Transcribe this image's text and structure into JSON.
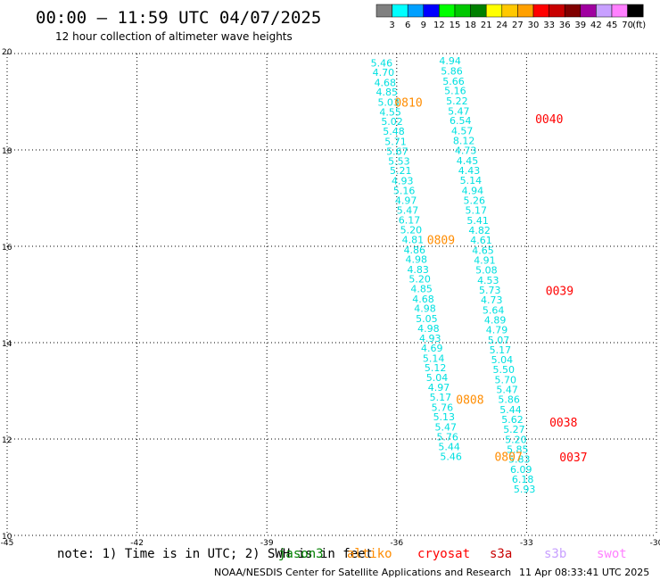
{
  "header": {
    "title": "00:00 – 11:59 UTC 04/07/2025",
    "subtitle": "12 hour collection of altimeter wave heights"
  },
  "colorbar": {
    "labels": [
      "3",
      "6",
      "9",
      "12",
      "15",
      "18",
      "21",
      "24",
      "27",
      "30",
      "33",
      "36",
      "39",
      "42",
      "45",
      "70"
    ],
    "unit": "(ft)",
    "colors": [
      "#808080",
      "#00ffff",
      "#00a0ff",
      "#0000ff",
      "#00ff00",
      "#00c800",
      "#008000",
      "#ffff00",
      "#ffc800",
      "#ffa000",
      "#ff0000",
      "#c80000",
      "#800000",
      "#a000a0",
      "#c8a0ff",
      "#ff80ff",
      "#000000"
    ]
  },
  "chart_data": {
    "type": "scatter",
    "xlim": [
      -45,
      -30
    ],
    "ylim": [
      10,
      20
    ],
    "x_ticks": [
      "-45",
      "-42",
      "-39",
      "-36",
      "-33",
      "-30"
    ],
    "x_tick_values": [
      -45,
      -42,
      -39,
      -36,
      -33,
      -30
    ],
    "y_ticks": [
      "10",
      "12",
      "14",
      "16",
      "18",
      "20"
    ],
    "y_tick_values": [
      10,
      12,
      14,
      16,
      18,
      20
    ],
    "grid": true,
    "legend_position": "bottom",
    "series": [
      {
        "label_color": "#00e0e0",
        "points": [
          {
            "x": -36.6,
            "y": 19.81,
            "label": "5.46"
          },
          {
            "x": -36.56,
            "y": 19.61,
            "label": "4.70"
          },
          {
            "x": -36.52,
            "y": 19.4,
            "label": "4.68"
          },
          {
            "x": -36.48,
            "y": 19.2,
            "label": "4.85"
          },
          {
            "x": -36.44,
            "y": 18.99,
            "label": "5.03"
          },
          {
            "x": -36.4,
            "y": 18.79,
            "label": "4.55"
          },
          {
            "x": -36.36,
            "y": 18.59,
            "label": "5.02"
          },
          {
            "x": -36.32,
            "y": 18.39,
            "label": "5.48"
          },
          {
            "x": -36.28,
            "y": 18.18,
            "label": "5.71"
          },
          {
            "x": -36.24,
            "y": 17.97,
            "label": "5.67"
          },
          {
            "x": -36.2,
            "y": 17.77,
            "label": "5.53"
          },
          {
            "x": -36.16,
            "y": 17.57,
            "label": "5.21"
          },
          {
            "x": -36.12,
            "y": 17.36,
            "label": "4.93"
          },
          {
            "x": -36.08,
            "y": 17.16,
            "label": "5.16"
          },
          {
            "x": -36.04,
            "y": 16.95,
            "label": "4.97"
          },
          {
            "x": -36.0,
            "y": 16.75,
            "label": "5.47"
          },
          {
            "x": -35.96,
            "y": 16.55,
            "label": "6.17"
          },
          {
            "x": -35.92,
            "y": 16.34,
            "label": "5.20"
          },
          {
            "x": -35.88,
            "y": 16.14,
            "label": "4.81"
          },
          {
            "x": -35.84,
            "y": 15.93,
            "label": "4.86"
          },
          {
            "x": -35.8,
            "y": 15.73,
            "label": "4.98"
          },
          {
            "x": -35.76,
            "y": 15.52,
            "label": "4.83"
          },
          {
            "x": -35.72,
            "y": 15.32,
            "label": "5.20"
          },
          {
            "x": -35.68,
            "y": 15.12,
            "label": "4.85"
          },
          {
            "x": -35.64,
            "y": 14.91,
            "label": "4.68"
          },
          {
            "x": -35.6,
            "y": 14.71,
            "label": "4.98"
          },
          {
            "x": -35.56,
            "y": 14.5,
            "label": "5.05"
          },
          {
            "x": -35.52,
            "y": 14.3,
            "label": "4.98"
          },
          {
            "x": -35.48,
            "y": 14.09,
            "label": "4.93"
          },
          {
            "x": -35.44,
            "y": 13.89,
            "label": "4.69"
          },
          {
            "x": -35.4,
            "y": 13.68,
            "label": "5.14"
          },
          {
            "x": -35.36,
            "y": 13.48,
            "label": "5.12"
          },
          {
            "x": -35.32,
            "y": 13.28,
            "label": "5.04"
          },
          {
            "x": -35.28,
            "y": 13.07,
            "label": "4.97"
          },
          {
            "x": -35.24,
            "y": 12.87,
            "label": "5.17"
          },
          {
            "x": -35.2,
            "y": 12.66,
            "label": "5.76"
          },
          {
            "x": -35.16,
            "y": 12.46,
            "label": "5.13"
          },
          {
            "x": -35.12,
            "y": 12.25,
            "label": "5.47"
          },
          {
            "x": -35.08,
            "y": 12.05,
            "label": "5.76"
          },
          {
            "x": -35.04,
            "y": 11.84,
            "label": "5.44"
          },
          {
            "x": -35.0,
            "y": 11.64,
            "label": "5.46"
          }
        ]
      },
      {
        "label_color": "#00e0e0",
        "points": [
          {
            "x": -35.02,
            "y": 19.85,
            "label": "4.94"
          },
          {
            "x": -34.98,
            "y": 19.64,
            "label": "5.86"
          },
          {
            "x": -34.94,
            "y": 19.43,
            "label": "5.66"
          },
          {
            "x": -34.9,
            "y": 19.23,
            "label": "5.16"
          },
          {
            "x": -34.86,
            "y": 19.02,
            "label": "5.22"
          },
          {
            "x": -34.82,
            "y": 18.81,
            "label": "5.47"
          },
          {
            "x": -34.78,
            "y": 18.61,
            "label": "6.54"
          },
          {
            "x": -34.74,
            "y": 18.4,
            "label": "4.57"
          },
          {
            "x": -34.7,
            "y": 18.19,
            "label": "8.12"
          },
          {
            "x": -34.66,
            "y": 17.99,
            "label": "4.73"
          },
          {
            "x": -34.62,
            "y": 17.78,
            "label": "4.45"
          },
          {
            "x": -34.58,
            "y": 17.57,
            "label": "4.43"
          },
          {
            "x": -34.54,
            "y": 17.37,
            "label": "5.14"
          },
          {
            "x": -34.5,
            "y": 17.16,
            "label": "4.94"
          },
          {
            "x": -34.46,
            "y": 16.95,
            "label": "5.26"
          },
          {
            "x": -34.42,
            "y": 16.75,
            "label": "5.17"
          },
          {
            "x": -34.38,
            "y": 16.54,
            "label": "5.41"
          },
          {
            "x": -34.34,
            "y": 16.33,
            "label": "4.82"
          },
          {
            "x": -34.3,
            "y": 16.13,
            "label": "4.61"
          },
          {
            "x": -34.26,
            "y": 15.92,
            "label": "4.65"
          },
          {
            "x": -34.22,
            "y": 15.71,
            "label": "4.91"
          },
          {
            "x": -34.18,
            "y": 15.51,
            "label": "5.08"
          },
          {
            "x": -34.14,
            "y": 15.3,
            "label": "4.53"
          },
          {
            "x": -34.1,
            "y": 15.09,
            "label": "5.73"
          },
          {
            "x": -34.06,
            "y": 14.89,
            "label": "4.73"
          },
          {
            "x": -34.02,
            "y": 14.68,
            "label": "5.64"
          },
          {
            "x": -33.98,
            "y": 14.47,
            "label": "4.89"
          },
          {
            "x": -33.94,
            "y": 14.27,
            "label": "4.79"
          },
          {
            "x": -33.9,
            "y": 14.06,
            "label": "5.07"
          },
          {
            "x": -33.86,
            "y": 13.85,
            "label": "5.17"
          },
          {
            "x": -33.82,
            "y": 13.65,
            "label": "5.04"
          },
          {
            "x": -33.78,
            "y": 13.44,
            "label": "5.50"
          },
          {
            "x": -33.74,
            "y": 13.23,
            "label": "5.70"
          },
          {
            "x": -33.7,
            "y": 13.03,
            "label": "5.47"
          },
          {
            "x": -33.66,
            "y": 12.82,
            "label": "5.86"
          },
          {
            "x": -33.62,
            "y": 12.61,
            "label": "5.44"
          },
          {
            "x": -33.58,
            "y": 12.41,
            "label": "5.62"
          },
          {
            "x": -33.54,
            "y": 12.2,
            "label": "5.27"
          },
          {
            "x": -33.5,
            "y": 11.99,
            "label": "5.20"
          },
          {
            "x": -33.46,
            "y": 11.79,
            "label": "5.85"
          },
          {
            "x": -33.42,
            "y": 11.58,
            "label": "5.83"
          },
          {
            "x": -33.38,
            "y": 11.37,
            "label": "6.09"
          },
          {
            "x": -33.34,
            "y": 11.17,
            "label": "6.18"
          },
          {
            "x": -33.3,
            "y": 10.96,
            "label": "5.93"
          }
        ]
      }
    ],
    "pass_times": [
      {
        "x": -36.05,
        "y": 18.99,
        "label": "0810",
        "color": "#ff8c00"
      },
      {
        "x": -35.3,
        "y": 16.14,
        "label": "0809",
        "color": "#ff8c00"
      },
      {
        "x": -34.63,
        "y": 12.82,
        "label": "0808",
        "color": "#ff8c00"
      },
      {
        "x": -33.74,
        "y": 11.64,
        "label": "0807",
        "color": "#ff8c00"
      },
      {
        "x": -32.8,
        "y": 18.65,
        "label": "0040",
        "color": "#ff0000"
      },
      {
        "x": -32.56,
        "y": 15.08,
        "label": "0039",
        "color": "#ff0000"
      },
      {
        "x": -32.47,
        "y": 12.35,
        "label": "0038",
        "color": "#ff0000"
      },
      {
        "x": -32.24,
        "y": 11.63,
        "label": "0037",
        "color": "#ff0000"
      }
    ]
  },
  "legend": {
    "note": "note: 1) Time is in UTC; 2) SWH is in feet",
    "satellites": [
      {
        "name": "jason3",
        "color": "#008000"
      },
      {
        "name": "altiko",
        "color": "#ff8c00"
      },
      {
        "name": "cryosat",
        "color": "#ff0000"
      },
      {
        "name": "s3a",
        "color": "#c80000"
      },
      {
        "name": "s3b",
        "color": "#c8a0ff"
      },
      {
        "name": "swot",
        "color": "#ff80ff"
      }
    ]
  },
  "footer": {
    "credit": "NOAA/NESDIS Center for Satellite Applications and Research",
    "timestamp": "11 Apr 08:33:41 UTC 2025"
  }
}
